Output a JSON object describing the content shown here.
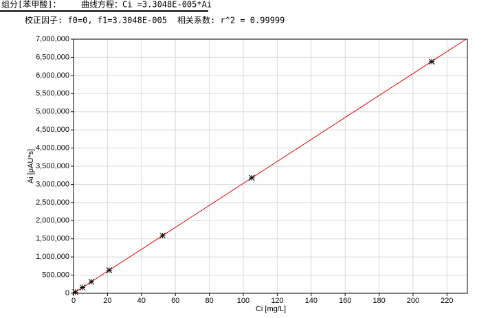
{
  "header": {
    "component": "组分[苯甲酸]：",
    "equation": "曲线方程：Ci =3.3048E-005*Ai",
    "factors": "校正因子: f0=0, f1=3.3048E-005",
    "correlation": "相关系数: r^2 = 0.99999"
  },
  "chart_data": {
    "type": "scatter",
    "x_label": "Ci [mg/L]",
    "y_label": "Ai [μAU*s]",
    "x": [
      1.05,
      5.3,
      10.5,
      21,
      52.5,
      105,
      211
    ],
    "series": [
      {
        "color": "#000000",
        "values": [
          31800,
          160000,
          318000,
          636000,
          1590000,
          3180000,
          6380000
        ]
      }
    ],
    "fit": {
      "color": "#e00000",
      "x": [
        0,
        231.3
      ],
      "y": [
        0,
        7000000
      ]
    },
    "xlim": [
      0,
      232
    ],
    "ylim": [
      0,
      7000000
    ],
    "xticks": [
      0,
      20,
      40,
      60,
      80,
      100,
      120,
      140,
      160,
      180,
      200,
      220
    ],
    "yticks": [
      0,
      {
        "value": 500000,
        "label": "500,000"
      },
      {
        "value": 1000000,
        "label": "1,000,000"
      },
      {
        "value": 1500000,
        "label": "1,500,000"
      },
      {
        "value": 2000000,
        "label": "2,000,000"
      },
      {
        "value": 2500000,
        "label": "2,500,000"
      },
      {
        "value": 3000000,
        "label": "3,000,000"
      },
      {
        "value": 3500000,
        "label": "3,500,000"
      },
      {
        "value": 4000000,
        "label": "4,000,000"
      },
      {
        "value": 4500000,
        "label": "4,500,000"
      },
      {
        "value": 5000000,
        "label": "5,000,000"
      },
      {
        "value": 5500000,
        "label": "5,500,000"
      },
      {
        "value": 6000000,
        "label": "6,000,000"
      },
      {
        "value": 6500000,
        "label": "6,500,000"
      },
      {
        "value": 7000000,
        "label": "7,000,000"
      }
    ],
    "grid": true
  }
}
